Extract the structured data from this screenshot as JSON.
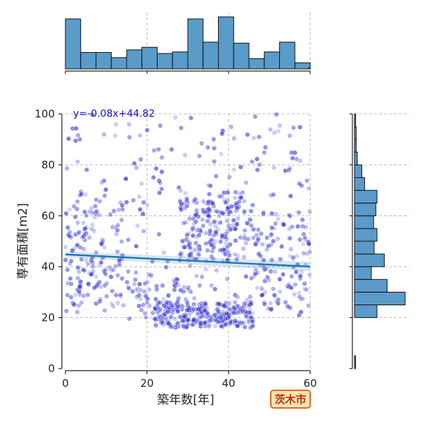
{
  "chart_data": {
    "type": "scatter",
    "xlabel": "築年数[年]",
    "ylabel": "専有面積[m2]",
    "xlim": [
      0,
      60
    ],
    "ylim": [
      0,
      100
    ],
    "x_ticks": [
      "0",
      "20",
      "40",
      "60"
    ],
    "y_ticks": [
      "0",
      "20",
      "40",
      "60",
      "80",
      "100"
    ],
    "grid": true,
    "point_color": "#2a2ad0",
    "regression": {
      "label": "y=-0.08x+44.82",
      "slope": -0.08,
      "intercept": 44.82,
      "color": "#1f77b4"
    },
    "clusters": [
      {
        "x": [
          0,
          60
        ],
        "y": [
          20,
          100
        ],
        "count": 260
      },
      {
        "x": [
          22,
          46
        ],
        "y": [
          16,
          26
        ],
        "count": 240
      },
      {
        "x": [
          28,
          44
        ],
        "y": [
          42,
          70
        ],
        "count": 170
      },
      {
        "x": [
          0,
          14
        ],
        "y": [
          24,
          66
        ],
        "count": 110
      },
      {
        "x": [
          44,
          60
        ],
        "y": [
          22,
          62
        ],
        "count": 110
      },
      {
        "x": [
          14,
          30
        ],
        "y": [
          19,
          34
        ],
        "count": 60
      }
    ],
    "marginal_x": {
      "bin_width": 3.75,
      "bins": [
        0,
        3.75,
        7.5,
        11.25,
        15,
        18.75,
        22.5,
        26.25,
        30,
        33.75,
        37.5,
        41.25,
        45,
        48.75,
        52.5,
        56.25
      ],
      "counts": [
        97,
        32,
        32,
        22,
        37,
        42,
        30,
        33,
        97,
        52,
        101,
        50,
        20,
        33,
        52,
        12
      ],
      "extra": [
        {
          "x": 60,
          "count": 2
        }
      ]
    },
    "marginal_y": {
      "bin_width": 5,
      "bins": [
        0,
        5,
        10,
        15,
        20,
        25,
        30,
        35,
        40,
        45,
        50,
        55,
        60,
        65,
        70,
        75,
        80,
        85,
        90,
        95
      ],
      "counts": [
        2,
        0,
        0,
        0,
        40,
        90,
        58,
        30,
        53,
        35,
        40,
        34,
        38,
        40,
        18,
        13,
        5,
        3,
        3,
        2
      ]
    }
  },
  "badge": {
    "label": "茨木市"
  }
}
